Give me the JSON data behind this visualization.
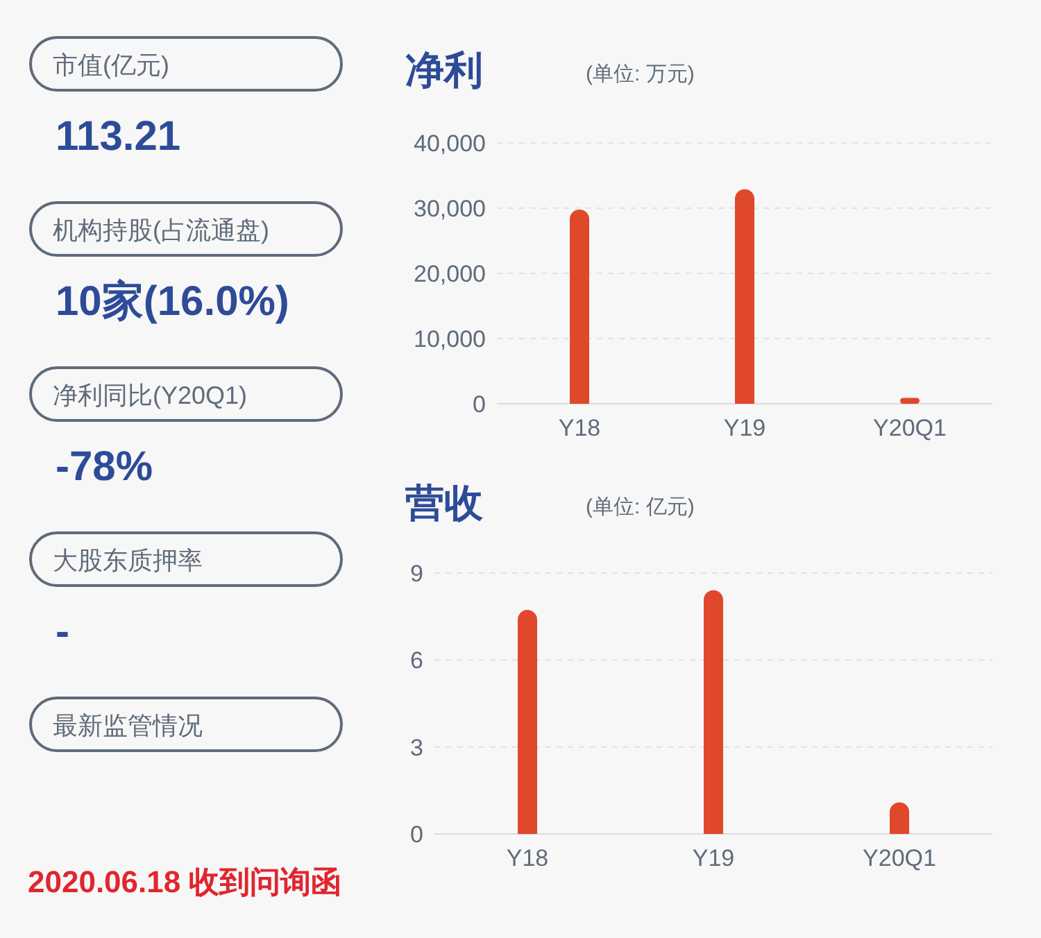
{
  "chart_data": [
    {
      "type": "other",
      "annotations": [
        "市值(亿元)",
        "113.21",
        "机构持股(占流通盘)",
        "10家(16.0%)",
        "净利同比(Y20Q1)",
        "-78%",
        "大股东质押率",
        "-",
        "最新监管情况",
        "2020.06.18 收到问询函"
      ]
    },
    {
      "type": "bar",
      "title": "净利",
      "subtitle": "(单位: 万元)",
      "categories": [
        "Y18",
        "Y19",
        "Y20Q1"
      ],
      "values": [
        29800,
        32900,
        900
      ],
      "color": "#e0482b",
      "ylim": [
        0,
        40000
      ],
      "yticks": [
        0,
        {
          "value": 10000,
          "label": "10,000"
        },
        {
          "value": 20000,
          "label": "20,000"
        },
        {
          "value": 30000,
          "label": "30,000"
        },
        {
          "value": 40000,
          "label": "40,000"
        }
      ],
      "grid": "y"
    },
    {
      "type": "bar",
      "title": "营收",
      "subtitle": "(单位: 亿元)",
      "categories": [
        "Y18",
        "Y19",
        "Y20Q1"
      ],
      "values": [
        7.73,
        8.41,
        1.09
      ],
      "color": "#e0482b",
      "ylim": [
        0,
        9
      ],
      "yticks": [
        0,
        3,
        6,
        9
      ],
      "grid": "y"
    }
  ]
}
